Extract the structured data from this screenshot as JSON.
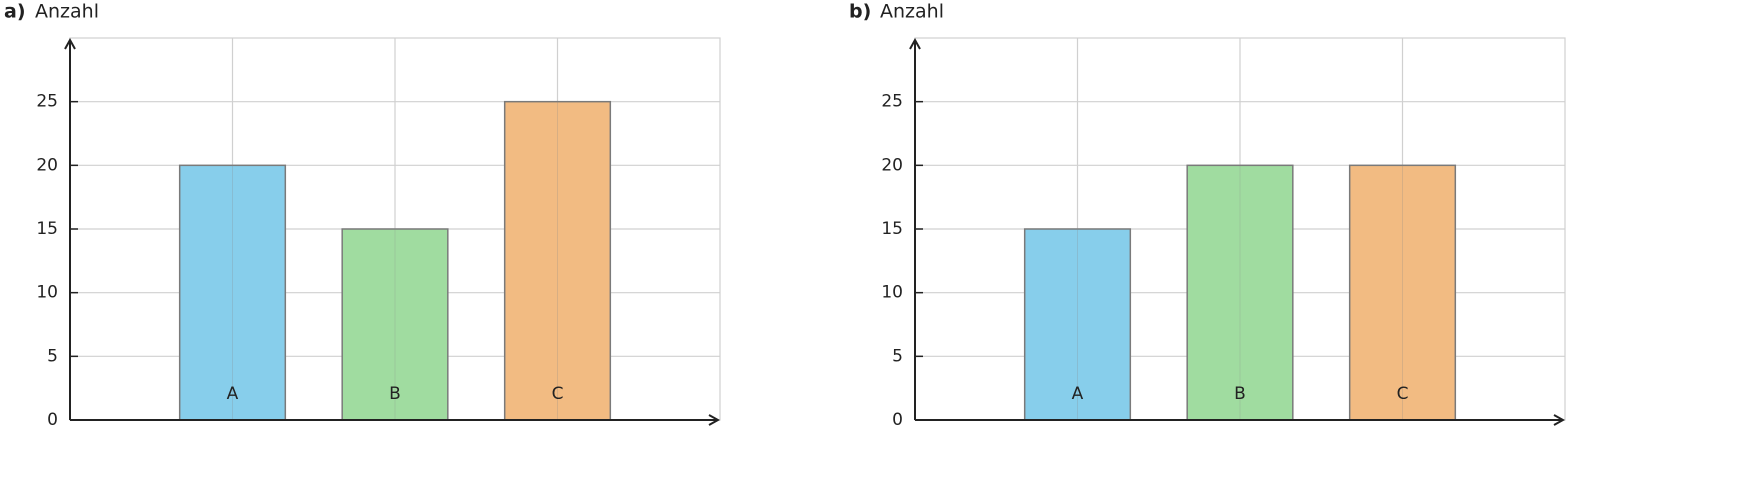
{
  "chart_data": [
    {
      "type": "bar",
      "label": "a)",
      "ylabel": "Anzahl",
      "categories": [
        "A",
        "B",
        "C"
      ],
      "values": [
        20,
        15,
        25
      ],
      "colors": [
        "#87ceeb",
        "#a0dca0",
        "#f2bb82"
      ],
      "ylim": [
        0,
        30
      ],
      "yticks": [
        0,
        5,
        10,
        15,
        20,
        25
      ],
      "grid": true
    },
    {
      "type": "bar",
      "label": "b)",
      "ylabel": "Anzahl",
      "categories": [
        "A",
        "B",
        "C"
      ],
      "values": [
        15,
        20,
        20
      ],
      "colors": [
        "#87ceeb",
        "#a0dca0",
        "#f2bb82"
      ],
      "ylim": [
        0,
        30
      ],
      "yticks": [
        0,
        5,
        10,
        15,
        20,
        25
      ],
      "grid": true
    }
  ]
}
